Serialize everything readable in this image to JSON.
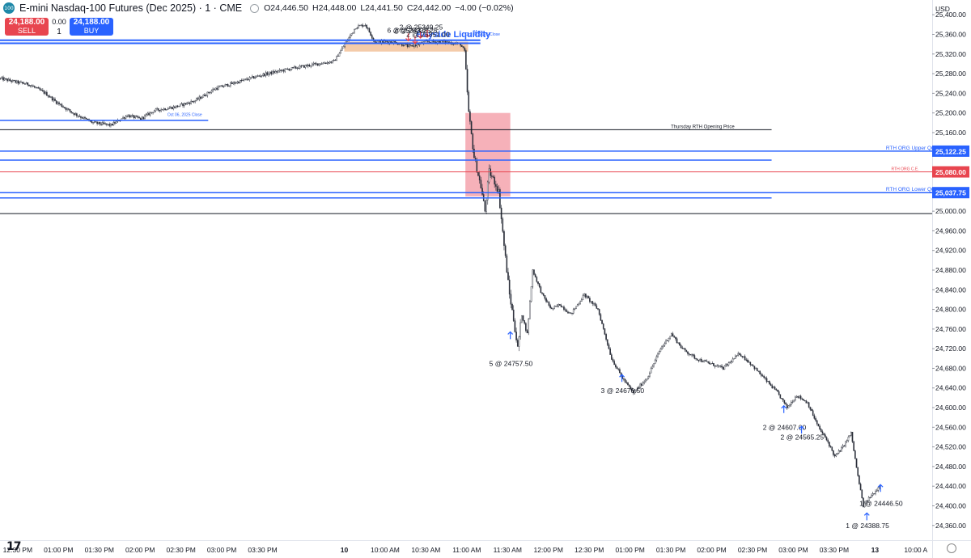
{
  "header": {
    "badge": "100",
    "title": "E-mini Nasdaq-100 Futures (Dec 2025) · 1 · CME",
    "ohlc": [
      {
        "k": "O",
        "v": "24,446.50"
      },
      {
        "k": "H",
        "v": "24,448.00"
      },
      {
        "k": "L",
        "v": "24,441.50"
      },
      {
        "k": "C",
        "v": "24,442.00"
      },
      {
        "k": "",
        "v": "−4.00 (−0.02%)"
      }
    ]
  },
  "trade": {
    "sell_price": "24,188.00",
    "sell_label": "SELL",
    "buy_price": "24,188.00",
    "buy_label": "BUY",
    "spread": "0.00",
    "qty": "1"
  },
  "logo": "17",
  "colors": {
    "up": "#2a2e39",
    "down": "#2a2e39",
    "blue": "#2962ff",
    "red": "#e8454f",
    "zone_red": "#f5a3ad",
    "zone_orange": "#f2c29a",
    "grid": "#131722"
  },
  "chart_data": {
    "type": "candlestick",
    "y_unit": "USD",
    "ylim": [
      24330,
      25430
    ],
    "y_ticks": [
      25400,
      25360,
      25320,
      25280,
      25240,
      25200,
      25160,
      25120,
      25080,
      25040,
      25000,
      24960,
      24920,
      24880,
      24840,
      24800,
      24760,
      24720,
      24680,
      24640,
      24600,
      24560,
      24520,
      24480,
      24440,
      24400,
      24360
    ],
    "y_tick_labels": [
      "25,400.00",
      "25,360.00",
      "25,320.00",
      "25,280.00",
      "25,240.00",
      "25,200.00",
      "25,160.00",
      "25,120.00",
      "25,080.00",
      "25,040.00",
      "25,000.00",
      "24,960.00",
      "24,920.00",
      "24,880.00",
      "24,840.00",
      "24,800.00",
      "24,760.00",
      "24,720.00",
      "24,680.00",
      "24,640.00",
      "24,600.00",
      "24,560.00",
      "24,520.00",
      "24,480.00",
      "24,440.00",
      "24,400.00",
      "24,360.00"
    ],
    "x_ticks": [
      {
        "t": -240,
        "label": "12:30 PM"
      },
      {
        "t": -210,
        "label": "01:00 PM"
      },
      {
        "t": -180,
        "label": "01:30 PM"
      },
      {
        "t": -150,
        "label": "02:00 PM"
      },
      {
        "t": -120,
        "label": "02:30 PM"
      },
      {
        "t": -90,
        "label": "03:00 PM"
      },
      {
        "t": -60,
        "label": "03:30 PM"
      },
      {
        "t": 0,
        "label": "10"
      },
      {
        "t": 30,
        "label": "10:00 AM"
      },
      {
        "t": 60,
        "label": "10:30 AM"
      },
      {
        "t": 90,
        "label": "11:00 AM"
      },
      {
        "t": 120,
        "label": "11:30 AM"
      },
      {
        "t": 150,
        "label": "12:00 PM"
      },
      {
        "t": 180,
        "label": "12:30 PM"
      },
      {
        "t": 210,
        "label": "01:00 PM"
      },
      {
        "t": 240,
        "label": "01:30 PM"
      },
      {
        "t": 270,
        "label": "02:00 PM"
      },
      {
        "t": 300,
        "label": "02:30 PM"
      },
      {
        "t": 330,
        "label": "03:00 PM"
      },
      {
        "t": 360,
        "label": "03:30 PM"
      },
      {
        "t": 390,
        "label": "13"
      },
      {
        "t": 420,
        "label": "10:00 A"
      }
    ],
    "xlim": [
      -253,
      432
    ],
    "anchors": [
      [
        -253,
        25270
      ],
      [
        -240,
        25262
      ],
      [
        -232,
        25258
      ],
      [
        -220,
        25240
      ],
      [
        -212,
        25222
      ],
      [
        -200,
        25200
      ],
      [
        -185,
        25180
      ],
      [
        -172,
        25175
      ],
      [
        -160,
        25195
      ],
      [
        -150,
        25188
      ],
      [
        -140,
        25205
      ],
      [
        -125,
        25212
      ],
      [
        -110,
        25225
      ],
      [
        -95,
        25250
      ],
      [
        -80,
        25262
      ],
      [
        -60,
        25278
      ],
      [
        -40,
        25290
      ],
      [
        -20,
        25300
      ],
      [
        -8,
        25305
      ],
      [
        0,
        25340
      ],
      [
        8,
        25375
      ],
      [
        15,
        25380
      ],
      [
        22,
        25345
      ],
      [
        35,
        25345
      ],
      [
        48,
        25335
      ],
      [
        60,
        25345
      ],
      [
        72,
        25345
      ],
      [
        85,
        25340
      ],
      [
        88,
        25325
      ],
      [
        91,
        25200
      ],
      [
        95,
        25110
      ],
      [
        100,
        25050
      ],
      [
        103,
        25000
      ],
      [
        106,
        25080
      ],
      [
        110,
        25060
      ],
      [
        113,
        25040
      ],
      [
        117,
        24930
      ],
      [
        121,
        24830
      ],
      [
        124,
        24780
      ],
      [
        127,
        24720
      ],
      [
        130,
        24790
      ],
      [
        134,
        24750
      ],
      [
        138,
        24880
      ],
      [
        145,
        24830
      ],
      [
        152,
        24800
      ],
      [
        158,
        24810
      ],
      [
        166,
        24790
      ],
      [
        176,
        24830
      ],
      [
        186,
        24800
      ],
      [
        196,
        24700
      ],
      [
        204,
        24660
      ],
      [
        212,
        24630
      ],
      [
        222,
        24660
      ],
      [
        232,
        24720
      ],
      [
        240,
        24750
      ],
      [
        248,
        24720
      ],
      [
        258,
        24700
      ],
      [
        268,
        24690
      ],
      [
        278,
        24680
      ],
      [
        290,
        24710
      ],
      [
        298,
        24690
      ],
      [
        308,
        24660
      ],
      [
        318,
        24630
      ],
      [
        325,
        24600
      ],
      [
        332,
        24625
      ],
      [
        340,
        24610
      ],
      [
        348,
        24560
      ],
      [
        355,
        24530
      ],
      [
        360,
        24500
      ],
      [
        366,
        24520
      ],
      [
        372,
        24548
      ],
      [
        377,
        24460
      ],
      [
        381,
        24400
      ],
      [
        385,
        24415
      ],
      [
        390,
        24430
      ],
      [
        394,
        24445
      ]
    ],
    "lines": [
      {
        "price": 25348,
        "t0": -253,
        "t1": 100,
        "color": "#2962ff",
        "width": 2
      },
      {
        "price": 25342,
        "t0": -253,
        "t1": 100,
        "color": "#2962ff",
        "width": 2
      },
      {
        "price": 25185,
        "t0": -253,
        "t1": -100,
        "color": "#2962ff",
        "width": 1.5
      },
      {
        "price": 25166,
        "t0": -253,
        "t1": 314,
        "color": "#131722",
        "width": 1
      },
      {
        "price": 25122.25,
        "t0": -253,
        "t1": 432,
        "color": "#2962ff",
        "width": 1.5
      },
      {
        "price": 25104,
        "t0": -253,
        "t1": 314,
        "color": "#2962ff",
        "width": 1.5
      },
      {
        "price": 25080,
        "t0": -253,
        "t1": 432,
        "color": "#e8454f",
        "width": 1
      },
      {
        "price": 25037.75,
        "t0": -253,
        "t1": 432,
        "color": "#2962ff",
        "width": 1.5
      },
      {
        "price": 25027,
        "t0": -253,
        "t1": 314,
        "color": "#2962ff",
        "width": 1.5
      },
      {
        "price": 24995,
        "t0": -253,
        "t1": 432,
        "color": "#131722",
        "width": 1
      }
    ],
    "zones": [
      {
        "t0": 0,
        "t1": 91,
        "p0": 25345,
        "p1": 25325,
        "color": "#f2c29a"
      },
      {
        "t0": 89,
        "t1": 122,
        "p0": 25200,
        "p1": 25030,
        "color": "#f5a3ad"
      }
    ],
    "line_labels": [
      {
        "text": "Buyside Liquidity",
        "t": 53,
        "price": 25351,
        "color": "#2962ff",
        "size": 11,
        "bold": true
      },
      {
        "text": "Oct 06, 2025 Close",
        "t": -130,
        "price": 25190,
        "color": "#2962ff",
        "size": 5,
        "bold": false
      },
      {
        "text": "Thursday RTH Opening Price",
        "t": 240,
        "price": 25166,
        "color": "#131722",
        "size": 6,
        "bold": false
      },
      {
        "text": "RTH ORG Upper Quadrant",
        "t": 398,
        "price": 25122.25,
        "color": "#2962ff",
        "size": 6.5,
        "bold": false
      },
      {
        "text": "RTH ORG C.E.",
        "t": 402,
        "price": 25080,
        "color": "#e8454f",
        "size": 5,
        "bold": false
      },
      {
        "text": "RTH ORG Lower Quadrant",
        "t": 398,
        "price": 25037.75,
        "color": "#2962ff",
        "size": 6.5,
        "bold": false
      },
      {
        "text": "Oct 08, 2025 Close",
        "t": 89,
        "price": 25354,
        "color": "#2962ff",
        "size": 5,
        "bold": false
      },
      {
        "text": "Macro",
        "t": 95,
        "price": 25359,
        "color": "#2962ff",
        "size": 5,
        "bold": false
      }
    ],
    "price_badges": [
      {
        "price": 25122.25,
        "label": "25,122.25",
        "color": "#2962ff"
      },
      {
        "price": 25080,
        "label": "25,080.00",
        "color": "#e8454f"
      },
      {
        "price": 25037.75,
        "label": "25,037.75",
        "color": "#2962ff"
      }
    ],
    "trade_marks": [
      {
        "t": 56,
        "price": 25349.25,
        "label": "2 @ 25349.25",
        "dir": "sell",
        "label_price": 25370
      },
      {
        "t": 47,
        "price": 25343.75,
        "label": "6 @ 25343.75",
        "dir": "sell",
        "label_price": 25363
      },
      {
        "t": 52,
        "price": 25338.25,
        "label": "2 @ 25338.25",
        "dir": "sell",
        "label_price": 25363
      },
      {
        "t": 61,
        "price": 25351.0,
        "label": "2 @ 25351.00",
        "dir": "sell",
        "label_price": 25355
      },
      {
        "t": 122,
        "price": 24757.5,
        "label": "5 @ 24757.50",
        "dir": "buy",
        "label_price": 24685
      },
      {
        "t": 204,
        "price": 24670.5,
        "label": "3 @ 24670.50",
        "dir": "buy",
        "label_price": 24630
      },
      {
        "t": 323,
        "price": 24607.0,
        "label": "2 @ 24607.00",
        "dir": "buy",
        "label_price": 24555
      },
      {
        "t": 336,
        "price": 24565.25,
        "label": "2 @ 24565.25",
        "dir": "buy",
        "label_price": 24535
      },
      {
        "t": 384,
        "price": 24388.75,
        "label": "1 @ 24388.75",
        "dir": "buy",
        "label_price": 24355
      },
      {
        "t": 394,
        "price": 24446.5,
        "label": "1 @ 24446.50",
        "dir": "buy",
        "label_price": 24400
      }
    ]
  }
}
